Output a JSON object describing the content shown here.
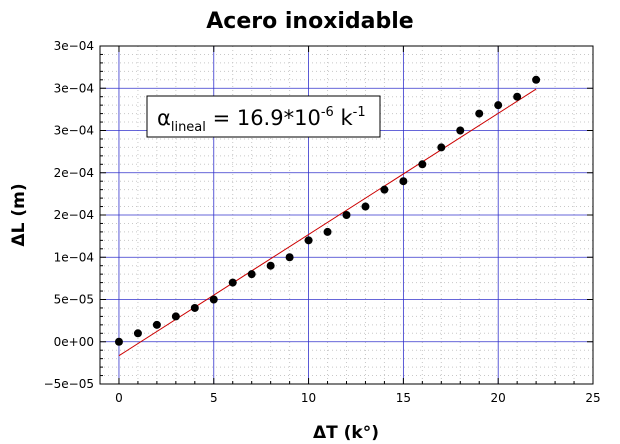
{
  "chart_data": {
    "type": "scatter",
    "title": "Acero inoxidable",
    "xlabel": "ΔT (k°)",
    "ylabel": "ΔL (m)",
    "xlim": [
      -1,
      25
    ],
    "ylim": [
      -5e-05,
      0.00035
    ],
    "x_ticks": [
      0,
      5,
      10,
      15,
      20,
      25
    ],
    "x_tick_labels": [
      "0",
      "5",
      "10",
      "15",
      "20",
      "25"
    ],
    "y_ticks": [
      -5e-05,
      0,
      5e-05,
      0.0001,
      0.00015,
      0.0002,
      0.00025,
      0.0003,
      0.00035
    ],
    "y_tick_labels": [
      "−5e−05",
      "0e+00",
      "5e−05",
      "1e−04",
      "2e−04",
      "2e−04",
      "3e−04",
      "3e−04",
      "3e−04"
    ],
    "grid": true,
    "series": [
      {
        "marker": "circle",
        "color": "#000000",
        "x": [
          0,
          1,
          2,
          3,
          4,
          5,
          6,
          7,
          8,
          9,
          10,
          11,
          12,
          13,
          14,
          15,
          16,
          17,
          18,
          19,
          20,
          21,
          22
        ],
        "y": [
          0,
          1e-05,
          2e-05,
          3e-05,
          4e-05,
          5e-05,
          7e-05,
          8e-05,
          9e-05,
          0.0001,
          0.00012,
          0.00013,
          0.00015,
          0.00016,
          0.00018,
          0.00019,
          0.00021,
          0.00023,
          0.00025,
          0.00027,
          0.00028,
          0.00029,
          0.00031
        ]
      }
    ],
    "fit_line": {
      "color": "#cc0000",
      "x": [
        0,
        22
      ],
      "y": [
        -1.65e-05,
        0.000299
      ]
    },
    "annotation": {
      "symbol": "α",
      "subscript": "lineal",
      "text": " = 16.9*10",
      "exponent": "-6",
      "unit": " k",
      "unit_exponent": "-1"
    },
    "colors": {
      "major_grid": "#3333cc",
      "minor_grid": "#c8c8c8",
      "fit_line": "#cc0000",
      "points": "#000000"
    }
  }
}
